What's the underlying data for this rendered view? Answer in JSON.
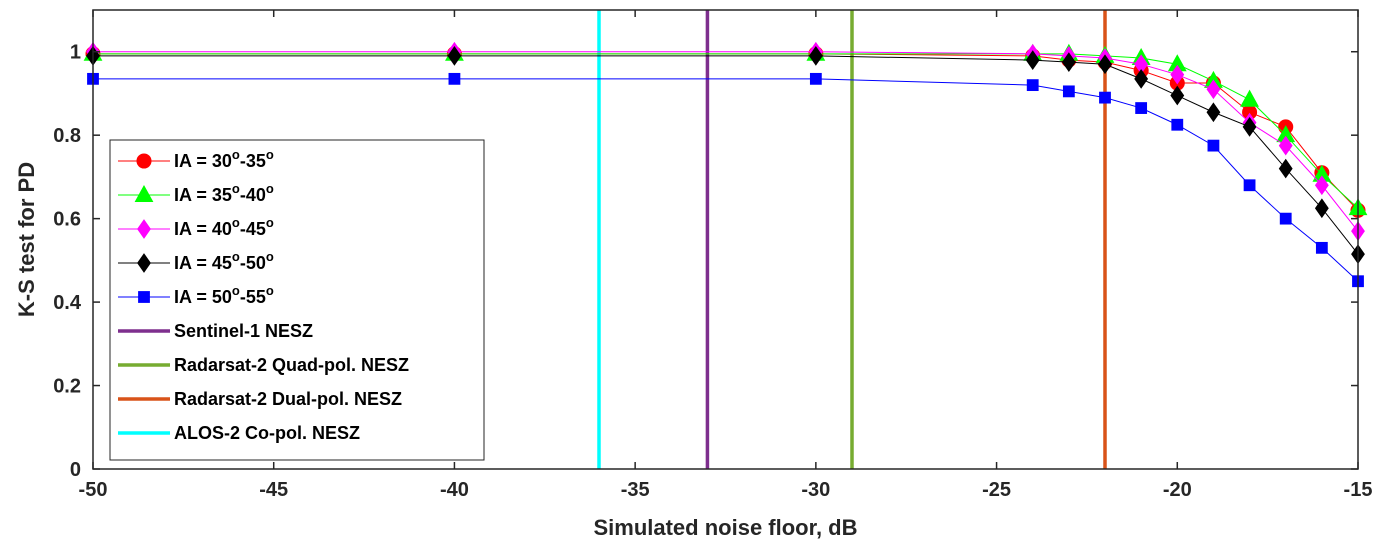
{
  "chart_data": {
    "type": "line",
    "xlabel": "Simulated noise floor, dB",
    "ylabel": "K-S test for PD",
    "xlim": [
      -50,
      -15
    ],
    "ylim": [
      0,
      1.1
    ],
    "xticks": [
      -50,
      -45,
      -40,
      -35,
      -30,
      -25,
      -20,
      -15
    ],
    "yticks": [
      0,
      0.2,
      0.4,
      0.6,
      0.8,
      1
    ],
    "x": [
      -50,
      -40,
      -30,
      -24,
      -23,
      -22,
      -21,
      -20,
      -19,
      -18,
      -17,
      -16,
      -15
    ],
    "legend_position": "center-left",
    "series": [
      {
        "name": "IA = 30°-35°",
        "label_parts": [
          "IA = 30",
          "o",
          "-35",
          "o"
        ],
        "color": "#ff0000",
        "marker": "circle",
        "values": [
          0.995,
          0.995,
          0.995,
          0.99,
          0.98,
          0.975,
          0.955,
          0.925,
          0.925,
          0.855,
          0.82,
          0.71,
          0.62
        ]
      },
      {
        "name": "IA = 35°-40°",
        "label_parts": [
          "IA = 35",
          "o",
          "-40",
          "o"
        ],
        "color": "#00ff00",
        "marker": "triangle",
        "values": [
          0.995,
          0.995,
          0.995,
          0.995,
          0.995,
          0.99,
          0.985,
          0.97,
          0.93,
          0.885,
          0.8,
          0.705,
          0.625
        ]
      },
      {
        "name": "IA = 40°-45°",
        "label_parts": [
          "IA = 40",
          "o",
          "-45",
          "o"
        ],
        "color": "#ff00ff",
        "marker": "diamond",
        "values": [
          1.0,
          1.0,
          1.0,
          0.995,
          0.99,
          0.985,
          0.97,
          0.945,
          0.91,
          0.83,
          0.775,
          0.68,
          0.57
        ]
      },
      {
        "name": "IA = 45°-50°",
        "label_parts": [
          "IA = 45",
          "o",
          "-50",
          "o"
        ],
        "color": "#000000",
        "marker": "diamond",
        "values": [
          0.99,
          0.99,
          0.99,
          0.98,
          0.975,
          0.97,
          0.935,
          0.895,
          0.855,
          0.82,
          0.72,
          0.625,
          0.515
        ]
      },
      {
        "name": "IA = 50°-55°",
        "label_parts": [
          "IA = 50",
          "o",
          "-55",
          "o"
        ],
        "color": "#0000ff",
        "marker": "square",
        "values": [
          0.935,
          0.935,
          0.935,
          0.92,
          0.905,
          0.89,
          0.865,
          0.825,
          0.775,
          0.68,
          0.6,
          0.53,
          0.45
        ]
      }
    ],
    "vlines": [
      {
        "name": "Sentinel-1 NESZ",
        "x": -33,
        "color": "#7e2f8e"
      },
      {
        "name": "Radarsat-2 Quad-pol. NESZ",
        "x": -29,
        "color": "#77ac30"
      },
      {
        "name": "Radarsat-2 Dual-pol. NESZ",
        "x": -22,
        "color": "#d95319"
      },
      {
        "name": "ALOS-2 Co-pol. NESZ",
        "x": -36,
        "color": "#00ffff"
      }
    ]
  }
}
